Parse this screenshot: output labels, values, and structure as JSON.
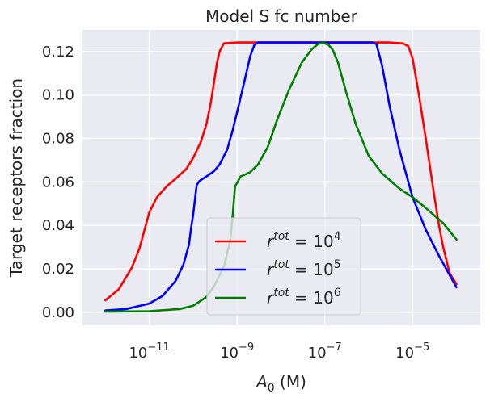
{
  "chart_data": {
    "type": "line",
    "title": "Model S fc number",
    "xlabel_main": "A",
    "xlabel_sub": "0",
    "xlabel_unit": " (M)",
    "ylabel": "Target receptors fraction",
    "xscale": "log",
    "xlim": [
      3e-13,
      0.00035
    ],
    "ylim": [
      -0.006,
      0.13
    ],
    "grid": true,
    "background": "#eaeaf2",
    "legend_position": "lower-center",
    "xticks": [
      {
        "value": 1e-11,
        "base": "10",
        "exp": "−11"
      },
      {
        "value": 1e-09,
        "base": "10",
        "exp": "−9"
      },
      {
        "value": 1e-07,
        "base": "10",
        "exp": "−7"
      },
      {
        "value": 1e-05,
        "base": "10",
        "exp": "−5"
      }
    ],
    "yticks": [
      {
        "value": 0.0,
        "label": "0.00"
      },
      {
        "value": 0.02,
        "label": "0.02"
      },
      {
        "value": 0.04,
        "label": "0.04"
      },
      {
        "value": 0.06,
        "label": "0.06"
      },
      {
        "value": 0.08,
        "label": "0.08"
      },
      {
        "value": 0.1,
        "label": "0.10"
      },
      {
        "value": 0.12,
        "label": "0.12"
      }
    ],
    "series": [
      {
        "legend_r": "r",
        "legend_sup": "tot",
        "legend_eq": " = 10",
        "legend_exp": "4",
        "color": "#ff0000",
        "points": [
          [
            1e-12,
            0.0055
          ],
          [
            2e-12,
            0.0105
          ],
          [
            4e-12,
            0.0205
          ],
          [
            6e-12,
            0.0295
          ],
          [
            1e-11,
            0.046
          ],
          [
            1.5e-11,
            0.053
          ],
          [
            2.5e-11,
            0.058
          ],
          [
            4e-11,
            0.0615
          ],
          [
            7e-11,
            0.066
          ],
          [
            1e-10,
            0.071
          ],
          [
            1.5e-10,
            0.0785
          ],
          [
            2e-10,
            0.0865
          ],
          [
            2.5e-10,
            0.096
          ],
          [
            3e-10,
            0.106
          ],
          [
            3.5e-10,
            0.115
          ],
          [
            4e-10,
            0.12
          ],
          [
            5e-10,
            0.1238
          ],
          [
            7e-10,
            0.124
          ],
          [
            1e-09,
            0.1242
          ],
          [
            1e-07,
            0.1242
          ],
          [
            3e-06,
            0.1242
          ],
          [
            6e-06,
            0.1238
          ],
          [
            8e-06,
            0.1225
          ],
          [
            1e-05,
            0.117
          ],
          [
            1.4e-05,
            0.1
          ],
          [
            2e-05,
            0.08
          ],
          [
            3e-05,
            0.056
          ],
          [
            4e-05,
            0.04
          ],
          [
            5e-05,
            0.03
          ],
          [
            7e-05,
            0.018
          ],
          [
            0.0001,
            0.013
          ]
        ]
      },
      {
        "legend_r": "r",
        "legend_sup": "tot",
        "legend_eq": " = 10",
        "legend_exp": "5",
        "color": "#0000ff",
        "points": [
          [
            1e-12,
            0.0008
          ],
          [
            3e-12,
            0.0015
          ],
          [
            1e-11,
            0.004
          ],
          [
            2e-11,
            0.0075
          ],
          [
            4e-11,
            0.0145
          ],
          [
            6e-11,
            0.022
          ],
          [
            8e-11,
            0.031
          ],
          [
            9e-11,
            0.039
          ],
          [
            1e-10,
            0.045
          ],
          [
            1.1e-10,
            0.052
          ],
          [
            1.2e-10,
            0.0585
          ],
          [
            1.4e-10,
            0.0605
          ],
          [
            2e-10,
            0.0625
          ],
          [
            3e-10,
            0.065
          ],
          [
            4e-10,
            0.068
          ],
          [
            6e-10,
            0.075
          ],
          [
            8e-10,
            0.084
          ],
          [
            1e-09,
            0.092
          ],
          [
            1.5e-09,
            0.107
          ],
          [
            2e-09,
            0.118
          ],
          [
            2.5e-09,
            0.1232
          ],
          [
            3e-09,
            0.1242
          ],
          [
            1e-07,
            0.1242
          ],
          [
            1.2e-06,
            0.1242
          ],
          [
            1.5e-06,
            0.1235
          ],
          [
            2e-06,
            0.114
          ],
          [
            3e-06,
            0.095
          ],
          [
            5e-06,
            0.075
          ],
          [
            1e-05,
            0.053
          ],
          [
            2e-05,
            0.038
          ],
          [
            4e-05,
            0.026
          ],
          [
            0.0001,
            0.0115
          ]
        ]
      },
      {
        "legend_r": "r",
        "legend_sup": "tot",
        "legend_eq": " = 10",
        "legend_exp": "6",
        "color": "#008000",
        "points": [
          [
            1e-12,
            0.0003
          ],
          [
            1e-11,
            0.0005
          ],
          [
            5e-11,
            0.0015
          ],
          [
            1e-10,
            0.003
          ],
          [
            2e-10,
            0.007
          ],
          [
            3e-10,
            0.012
          ],
          [
            5e-10,
            0.021
          ],
          [
            7e-10,
            0.033
          ],
          [
            8e-10,
            0.045
          ],
          [
            9e-10,
            0.058
          ],
          [
            1e-09,
            0.0595
          ],
          [
            1.2e-09,
            0.0625
          ],
          [
            2e-09,
            0.0645
          ],
          [
            3e-09,
            0.068
          ],
          [
            5e-09,
            0.076
          ],
          [
            8e-09,
            0.088
          ],
          [
            1.5e-08,
            0.102
          ],
          [
            3e-08,
            0.115
          ],
          [
            5e-08,
            0.121
          ],
          [
            7e-08,
            0.1235
          ],
          [
            9e-08,
            0.124
          ],
          [
            1.2e-07,
            0.1232
          ],
          [
            1.5e-07,
            0.121
          ],
          [
            2e-07,
            0.115
          ],
          [
            3e-07,
            0.102
          ],
          [
            5e-07,
            0.087
          ],
          [
            1e-06,
            0.072
          ],
          [
            2e-06,
            0.064
          ],
          [
            5e-06,
            0.057
          ],
          [
            1e-05,
            0.053
          ],
          [
            2e-05,
            0.048
          ],
          [
            5e-05,
            0.041
          ],
          [
            0.0001,
            0.0335
          ]
        ]
      }
    ]
  }
}
